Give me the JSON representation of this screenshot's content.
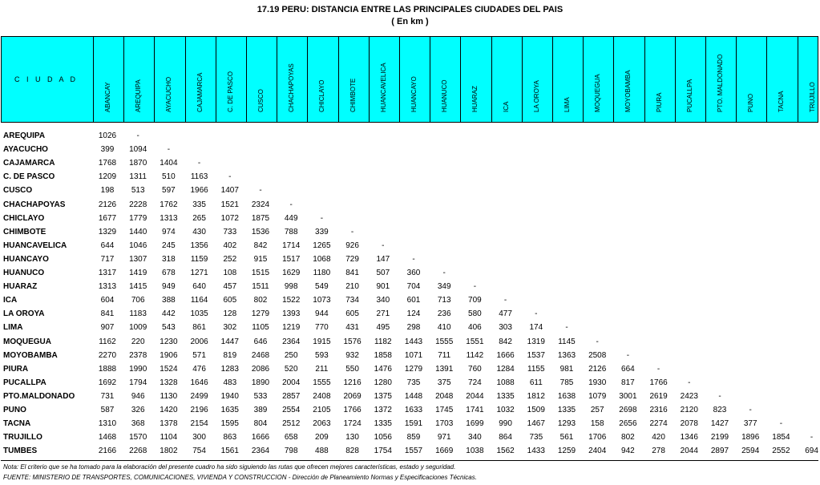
{
  "title": "17.19  PERU: DISTANCIA ENTRE LAS PRINCIPALES CIUDADES DEL PAIS",
  "subtitle": "( En km )",
  "header": {
    "city_label": "C I U D A D",
    "columns": [
      "ABANCAY",
      "AREQUIPA",
      "AYACUCHO",
      "CAJAMARCA",
      "C. DE PASCO",
      "CUSCO",
      "CHACHAPOYAS",
      "CHICLAYO",
      "CHIMBOTE",
      "HUANCAVELICA",
      "HUANCAYO",
      "HUANUCO",
      "HUARAZ",
      "ICA",
      "LA OROYA",
      "LIMA",
      "MOQUEGUA",
      "MOYOBAMBA",
      "PIURA",
      "PUCALLPA",
      "PTO. MALDONADO",
      "PUNO",
      "TACNA",
      "TRUJILLO"
    ]
  },
  "rows": [
    {
      "name": "AREQUIPA",
      "values": [
        "1026",
        "-"
      ]
    },
    {
      "name": "AYACUCHO",
      "values": [
        "399",
        "1094",
        "-"
      ]
    },
    {
      "name": "CAJAMARCA",
      "values": [
        "1768",
        "1870",
        "1404",
        "-"
      ]
    },
    {
      "name": "C. DE PASCO",
      "values": [
        "1209",
        "1311",
        "510",
        "1163",
        "-"
      ]
    },
    {
      "name": "CUSCO",
      "values": [
        "198",
        "513",
        "597",
        "1966",
        "1407",
        "-"
      ]
    },
    {
      "name": "CHACHAPOYAS",
      "values": [
        "2126",
        "2228",
        "1762",
        "335",
        "1521",
        "2324",
        "-"
      ]
    },
    {
      "name": "CHICLAYO",
      "values": [
        "1677",
        "1779",
        "1313",
        "265",
        "1072",
        "1875",
        "449",
        "-"
      ]
    },
    {
      "name": "CHIMBOTE",
      "values": [
        "1329",
        "1440",
        "974",
        "430",
        "733",
        "1536",
        "788",
        "339",
        "-"
      ]
    },
    {
      "name": "HUANCAVELICA",
      "values": [
        "644",
        "1046",
        "245",
        "1356",
        "402",
        "842",
        "1714",
        "1265",
        "926",
        "-"
      ]
    },
    {
      "name": "HUANCAYO",
      "values": [
        "717",
        "1307",
        "318",
        "1159",
        "252",
        "915",
        "1517",
        "1068",
        "729",
        "147",
        "-"
      ]
    },
    {
      "name": "HUANUCO",
      "values": [
        "1317",
        "1419",
        "678",
        "1271",
        "108",
        "1515",
        "1629",
        "1180",
        "841",
        "507",
        "360",
        "-"
      ]
    },
    {
      "name": "HUARAZ",
      "values": [
        "1313",
        "1415",
        "949",
        "640",
        "457",
        "1511",
        "998",
        "549",
        "210",
        "901",
        "704",
        "349",
        "-"
      ]
    },
    {
      "name": "ICA",
      "values": [
        "604",
        "706",
        "388",
        "1164",
        "605",
        "802",
        "1522",
        "1073",
        "734",
        "340",
        "601",
        "713",
        "709",
        "-"
      ]
    },
    {
      "name": "LA OROYA",
      "values": [
        "841",
        "1183",
        "442",
        "1035",
        "128",
        "1279",
        "1393",
        "944",
        "605",
        "271",
        "124",
        "236",
        "580",
        "477",
        "-"
      ]
    },
    {
      "name": "LIMA",
      "values": [
        "907",
        "1009",
        "543",
        "861",
        "302",
        "1105",
        "1219",
        "770",
        "431",
        "495",
        "298",
        "410",
        "406",
        "303",
        "174",
        "-"
      ]
    },
    {
      "name": "MOQUEGUA",
      "values": [
        "1162",
        "220",
        "1230",
        "2006",
        "1447",
        "646",
        "2364",
        "1915",
        "1576",
        "1182",
        "1443",
        "1555",
        "1551",
        "842",
        "1319",
        "1145",
        "-"
      ]
    },
    {
      "name": "MOYOBAMBA",
      "values": [
        "2270",
        "2378",
        "1906",
        "571",
        "819",
        "2468",
        "250",
        "593",
        "932",
        "1858",
        "1071",
        "711",
        "1142",
        "1666",
        "1537",
        "1363",
        "2508",
        "-"
      ]
    },
    {
      "name": "PIURA",
      "values": [
        "1888",
        "1990",
        "1524",
        "476",
        "1283",
        "2086",
        "520",
        "211",
        "550",
        "1476",
        "1279",
        "1391",
        "760",
        "1284",
        "1155",
        "981",
        "2126",
        "664",
        "-"
      ]
    },
    {
      "name": "PUCALLPA",
      "values": [
        "1692",
        "1794",
        "1328",
        "1646",
        "483",
        "1890",
        "2004",
        "1555",
        "1216",
        "1280",
        "735",
        "375",
        "724",
        "1088",
        "611",
        "785",
        "1930",
        "817",
        "1766",
        "-"
      ]
    },
    {
      "name": "PTO.MALDONADO",
      "values": [
        "731",
        "946",
        "1130",
        "2499",
        "1940",
        "533",
        "2857",
        "2408",
        "2069",
        "1375",
        "1448",
        "2048",
        "2044",
        "1335",
        "1812",
        "1638",
        "1079",
        "3001",
        "2619",
        "2423",
        "-"
      ]
    },
    {
      "name": "PUNO",
      "values": [
        "587",
        "326",
        "1420",
        "2196",
        "1635",
        "389",
        "2554",
        "2105",
        "1766",
        "1372",
        "1633",
        "1745",
        "1741",
        "1032",
        "1509",
        "1335",
        "257",
        "2698",
        "2316",
        "2120",
        "823",
        "-"
      ]
    },
    {
      "name": "TACNA",
      "values": [
        "1310",
        "368",
        "1378",
        "2154",
        "1595",
        "804",
        "2512",
        "2063",
        "1724",
        "1335",
        "1591",
        "1703",
        "1699",
        "990",
        "1467",
        "1293",
        "158",
        "2656",
        "2274",
        "2078",
        "1427",
        "377",
        "-"
      ]
    },
    {
      "name": "TRUJILLO",
      "values": [
        "1468",
        "1570",
        "1104",
        "300",
        "863",
        "1666",
        "658",
        "209",
        "130",
        "1056",
        "859",
        "971",
        "340",
        "864",
        "735",
        "561",
        "1706",
        "802",
        "420",
        "1346",
        "2199",
        "1896",
        "1854",
        "-"
      ]
    },
    {
      "name": "TUMBES",
      "values": [
        "2166",
        "2268",
        "1802",
        "754",
        "1561",
        "2364",
        "798",
        "488",
        "828",
        "1754",
        "1557",
        "1669",
        "1038",
        "1562",
        "1433",
        "1259",
        "2404",
        "942",
        "278",
        "2044",
        "2897",
        "2594",
        "2552",
        "694"
      ]
    }
  ],
  "note": "Nota: El criterio que se ha tomado para la elaboración del presente cuadro ha sido siguiendo las rutas que ofrecen mejores características, estado y seguridad.",
  "source": "FUENTE: MINISTERIO DE TRANSPORTES, COMUNICACIONES, VIVIENDA Y CONSTRUCCION - Dirección de Planeamiento Normas y Especificaciones Técnicas.",
  "colors": {
    "header_bg": "#00ffff"
  }
}
